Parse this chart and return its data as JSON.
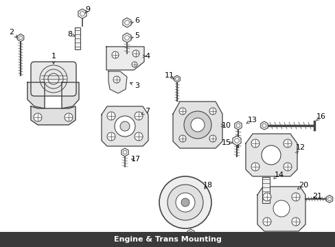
{
  "title": "Engine & Trans Mounting",
  "bg": "#ffffff",
  "lc": "#444444",
  "tc": "#000000",
  "title_bg": "#3a3a3a",
  "title_fg": "#ffffff",
  "fig_w": 4.89,
  "fig_h": 3.6,
  "dpi": 100
}
